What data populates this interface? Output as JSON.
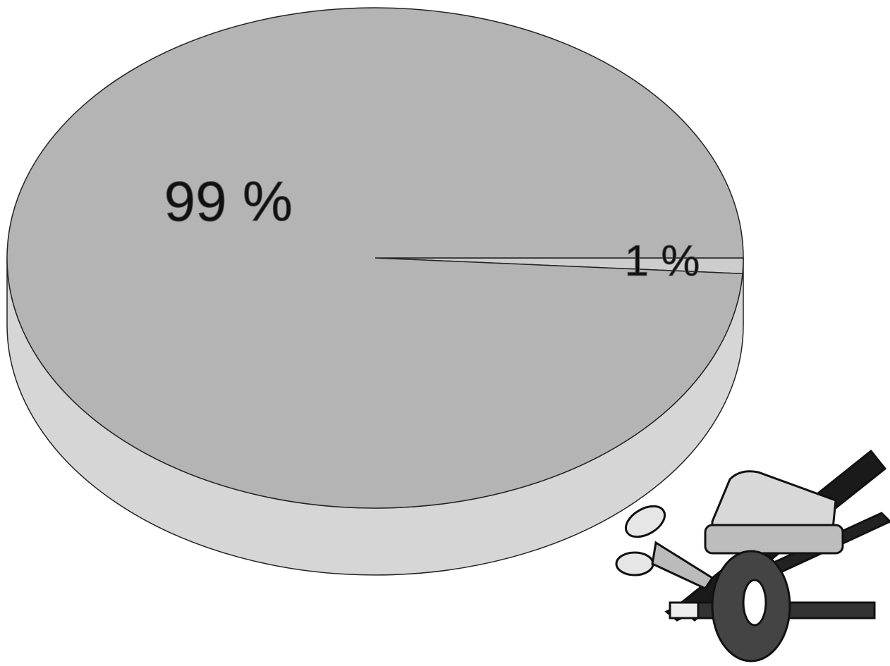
{
  "chart_data": {
    "type": "pie",
    "values": [
      99,
      1
    ],
    "value_labels": [
      "99 %",
      "1 %"
    ],
    "colors": [
      "#b4b4b4",
      "#cdcdcd"
    ],
    "side_color": "#d6d6d6"
  }
}
